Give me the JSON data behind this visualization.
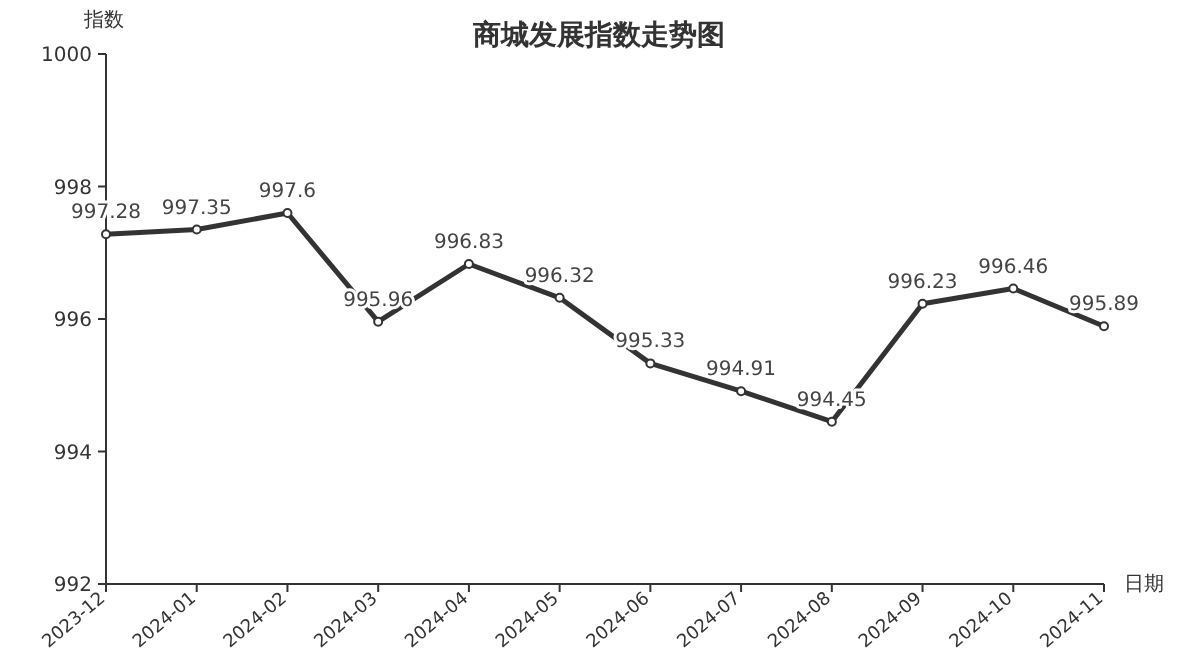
{
  "chart_data": {
    "type": "line",
    "title": "商城发展指数走势图",
    "xlabel": "日期",
    "ylabel": "指数",
    "categories": [
      "2023-12",
      "2024-01",
      "2024-02",
      "2024-03",
      "2024-04",
      "2024-05",
      "2024-06",
      "2024-07",
      "2024-08",
      "2024-09",
      "2024-10",
      "2024-11"
    ],
    "values": [
      997.28,
      997.35,
      997.6,
      995.96,
      996.83,
      996.32,
      995.33,
      994.91,
      994.45,
      996.23,
      996.46,
      995.89
    ],
    "color": "#333333",
    "ylim": [
      992,
      1000
    ],
    "yticks": [
      992,
      994,
      996,
      998,
      1000
    ],
    "data_labels": true,
    "marker": "circle"
  }
}
